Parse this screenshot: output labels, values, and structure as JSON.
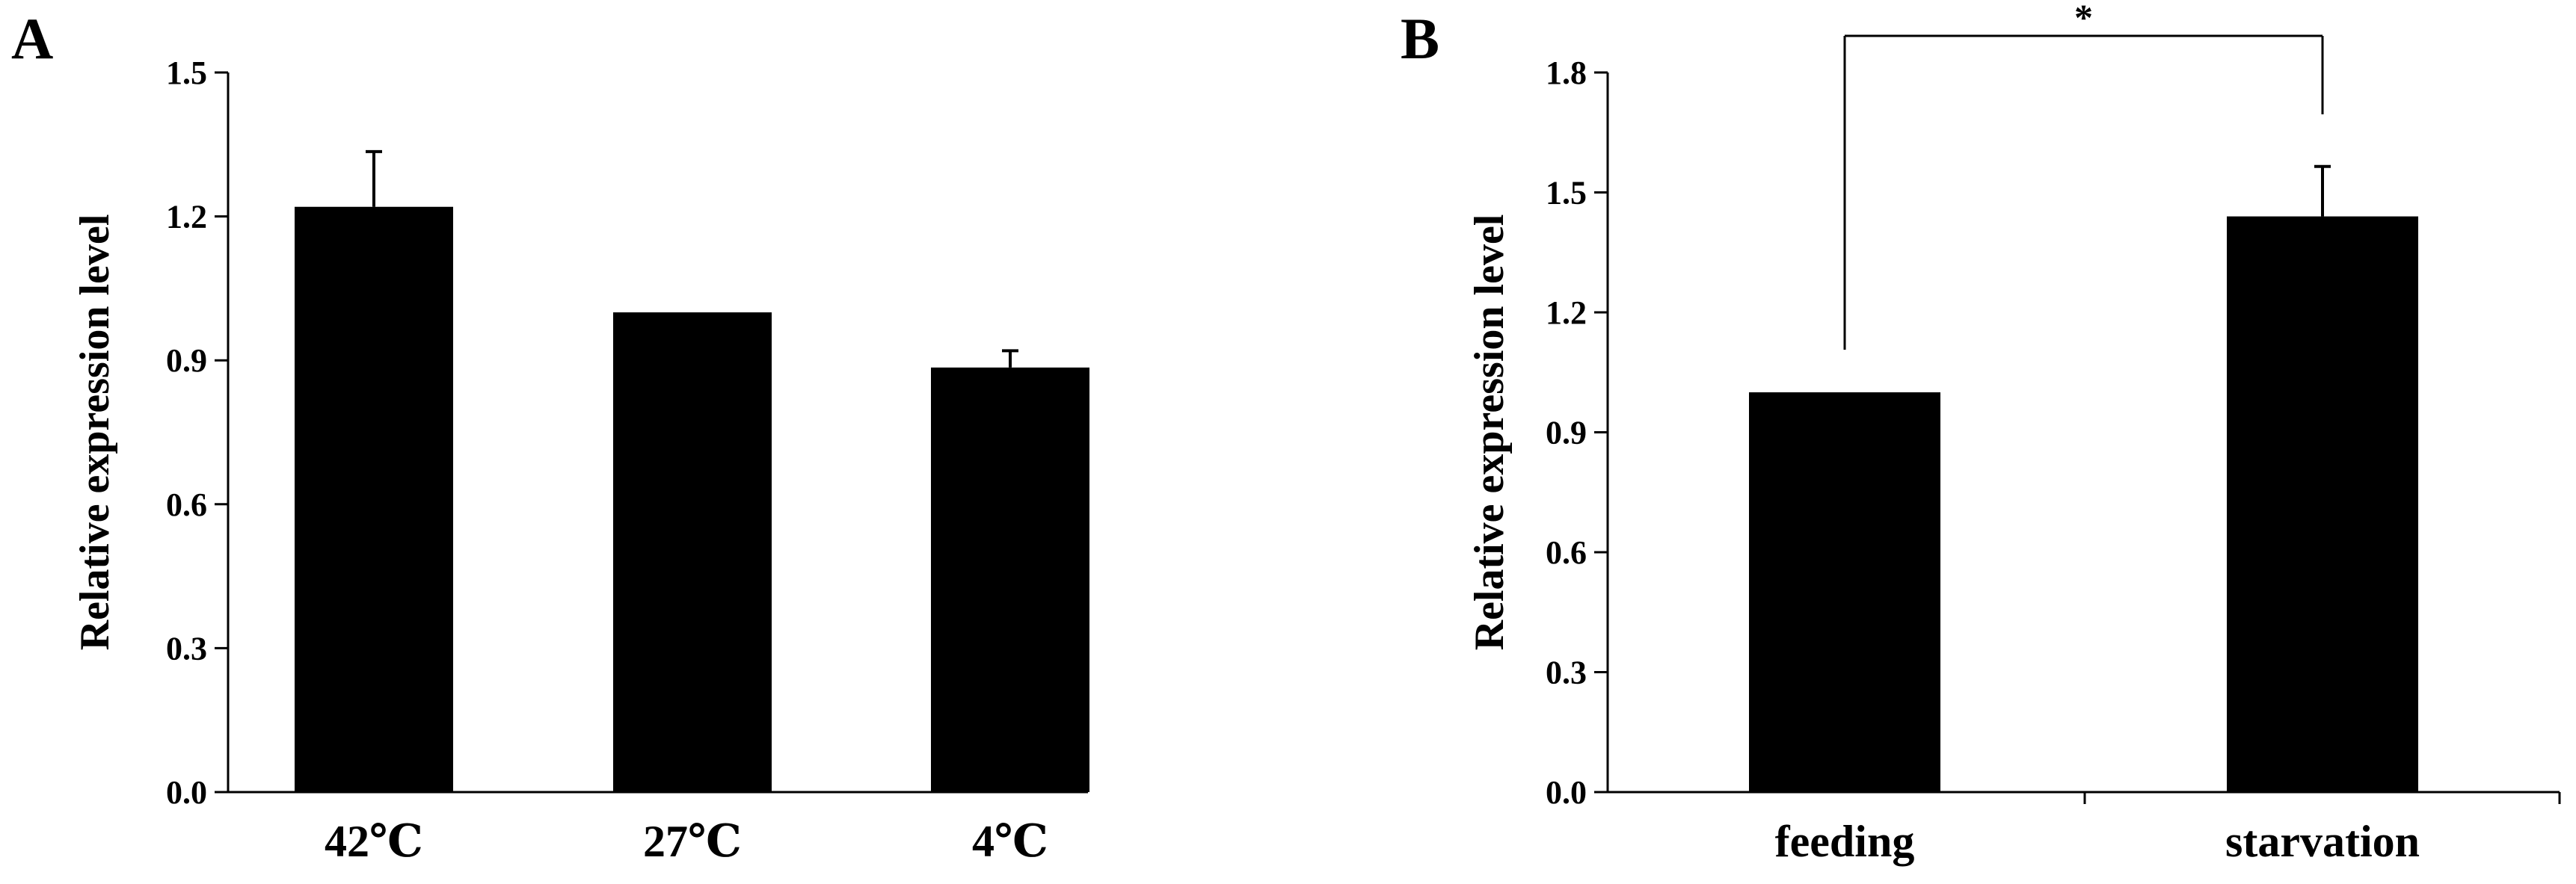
{
  "chart_data": [
    {
      "type": "bar",
      "panel_label": "A",
      "categories": [
        "42℃",
        "27℃",
        "4℃"
      ],
      "values": [
        1.22,
        1.0,
        0.885
      ],
      "error": [
        0.115,
        0.0,
        0.035
      ],
      "ylabel": "Relative expression level",
      "xlabel": "",
      "ylim": [
        0,
        1.5
      ],
      "yticks": [
        "0.0",
        "0.3",
        "0.6",
        "0.9",
        "1.2",
        "1.5"
      ],
      "bar_color": "#000000",
      "grid": false
    },
    {
      "type": "bar",
      "panel_label": "B",
      "categories": [
        "feeding",
        "starvation"
      ],
      "values": [
        1.0,
        1.44
      ],
      "error": [
        0.0,
        0.125
      ],
      "ylabel": "Relative expression level",
      "xlabel": "",
      "ylim": [
        0,
        1.8
      ],
      "yticks": [
        "0.0",
        "0.3",
        "0.6",
        "0.9",
        "1.2",
        "1.5",
        "1.8"
      ],
      "significance": {
        "between": [
          "feeding",
          "starvation"
        ],
        "label": "*"
      },
      "bar_color": "#000000",
      "grid": false
    }
  ]
}
